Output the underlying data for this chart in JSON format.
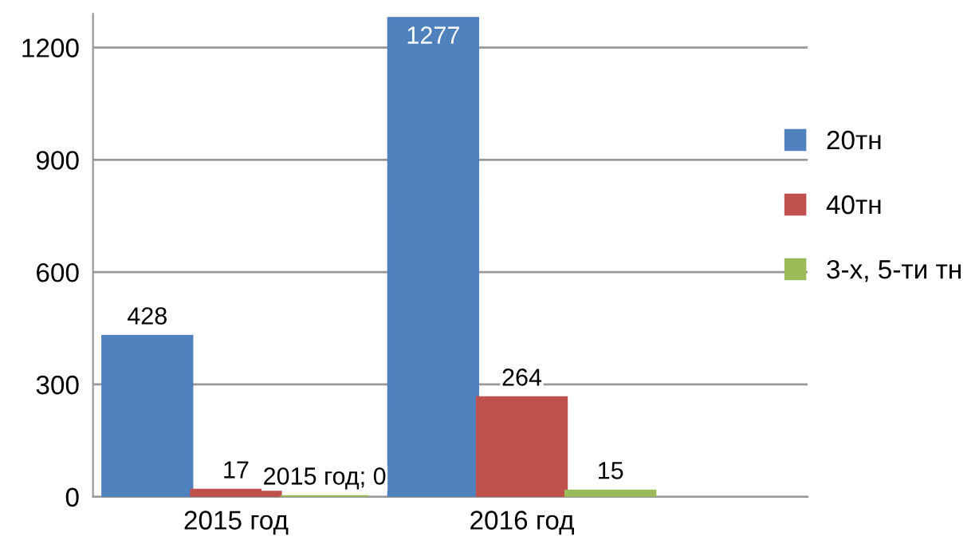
{
  "chart_data": {
    "type": "bar",
    "categories": [
      "2015 год",
      "2016 год"
    ],
    "series": [
      {
        "name": "20тн",
        "color": "#4f81bd",
        "values": [
          428,
          1277
        ],
        "value_labels": [
          "428",
          "1277"
        ]
      },
      {
        "name": "40тн",
        "color": "#c0504d",
        "values": [
          17,
          264
        ],
        "value_labels": [
          "17",
          "264"
        ]
      },
      {
        "name": "3-х, 5-ти тн",
        "color": "#9bbb59",
        "values": [
          0,
          15
        ],
        "value_labels": [
          "2015 год; 0",
          "15"
        ]
      }
    ],
    "ylim": [
      0,
      1290
    ],
    "yticks": [
      0,
      300,
      600,
      900,
      1200
    ],
    "grid": "y",
    "legend": "right"
  }
}
